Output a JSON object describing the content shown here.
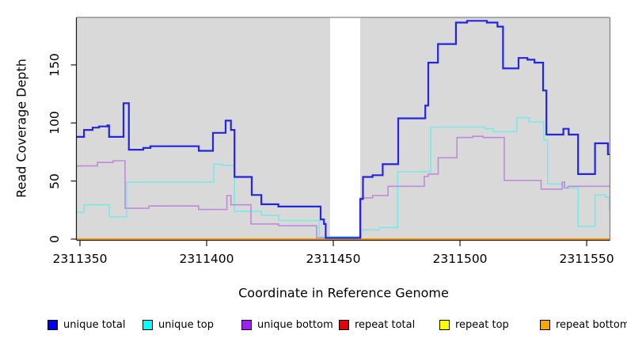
{
  "chart_data": {
    "type": "line",
    "step": true,
    "title": "",
    "xlabel": "Coordinate in Reference Genome",
    "ylabel": "Read Coverage Depth",
    "xlim": [
      2311348.75,
      2311559.2
    ],
    "ylim": [
      0,
      190.9
    ],
    "xticks": [
      2311350,
      2311400,
      2311450,
      2311500,
      2311550
    ],
    "yticks": [
      0,
      50,
      100,
      150
    ],
    "plot_bg": "#d9d9d9",
    "border_color": "#858585",
    "axis_color": "#1a1a1a",
    "gap_region": {
      "x1": 2311448.75,
      "x2": 2311460.6,
      "color": "#ffffff"
    },
    "series": [
      {
        "name": "repeat total",
        "line_color": "#e60000",
        "width": 1.5,
        "points": [
          [
            2311348.75,
            0
          ]
        ]
      },
      {
        "name": "repeat top",
        "line_color": "#ffff00",
        "width": 1.5,
        "points": [
          [
            2311348.75,
            0
          ]
        ]
      },
      {
        "name": "repeat bottom",
        "line_color": "#ff9d00",
        "width": 2,
        "points": [
          [
            2311348.75,
            0
          ]
        ]
      },
      {
        "name": "unique top",
        "line_color": "#7de8e6",
        "width": 1.6,
        "points": [
          [
            2311348.75,
            23
          ],
          [
            2311351.6,
            29.5
          ],
          [
            2311361.6,
            19
          ],
          [
            2311368.4,
            49
          ],
          [
            2311402.8,
            64.5
          ],
          [
            2311406.3,
            63.5
          ],
          [
            2311411,
            24
          ],
          [
            2311421.6,
            20.5
          ],
          [
            2311428.4,
            16
          ],
          [
            2311444.4,
            2
          ],
          [
            2311461,
            8
          ],
          [
            2311468.2,
            10
          ],
          [
            2311475.4,
            58
          ],
          [
            2311488.5,
            96.5
          ],
          [
            2311510,
            95
          ],
          [
            2311513.1,
            92.5
          ],
          [
            2311522.5,
            104.5
          ],
          [
            2311527.3,
            101
          ],
          [
            2311533.1,
            85
          ],
          [
            2311534.6,
            47.5
          ],
          [
            2311540.9,
            44
          ],
          [
            2311546.6,
            11
          ],
          [
            2311553.3,
            38
          ],
          [
            2311557.5,
            36
          ],
          [
            2311558.9,
            26
          ]
        ]
      },
      {
        "name": "unique bottom",
        "line_color": "#bf8bd9",
        "width": 1.6,
        "points": [
          [
            2311348.75,
            63
          ],
          [
            2311356.9,
            66
          ],
          [
            2311363.1,
            67.5
          ],
          [
            2311367.8,
            26.5
          ],
          [
            2311377.2,
            28.5
          ],
          [
            2311396.8,
            25.5
          ],
          [
            2311408,
            37.5
          ],
          [
            2311409.6,
            29.5
          ],
          [
            2311417.5,
            13
          ],
          [
            2311428.4,
            11.5
          ],
          [
            2311443.4,
            1
          ],
          [
            2311460.9,
            35.5
          ],
          [
            2311465.5,
            37.5
          ],
          [
            2311471.6,
            45.5
          ],
          [
            2311485.9,
            54
          ],
          [
            2311487.5,
            56
          ],
          [
            2311491.4,
            70
          ],
          [
            2311498.8,
            87.5
          ],
          [
            2311505,
            88.5
          ],
          [
            2311509.1,
            87.5
          ],
          [
            2311517.5,
            50.5
          ],
          [
            2311532,
            43
          ],
          [
            2311540.3,
            49
          ],
          [
            2311541.3,
            44
          ],
          [
            2311542.6,
            45.5
          ]
        ]
      },
      {
        "name": "unique total",
        "line_color": "#2525e0",
        "width": 2.2,
        "points": [
          [
            2311348.75,
            88
          ],
          [
            2311351.6,
            94
          ],
          [
            2311355,
            96
          ],
          [
            2311357.5,
            97
          ],
          [
            2311360.8,
            98
          ],
          [
            2311361.5,
            88
          ],
          [
            2311367.2,
            117
          ],
          [
            2311369.3,
            77
          ],
          [
            2311375,
            78.5
          ],
          [
            2311377.8,
            80
          ],
          [
            2311396.9,
            76
          ],
          [
            2311402.5,
            91.5
          ],
          [
            2311407.5,
            102
          ],
          [
            2311409.6,
            94
          ],
          [
            2311411,
            53.5
          ],
          [
            2311417.8,
            38
          ],
          [
            2311421.6,
            30
          ],
          [
            2311428.3,
            28
          ],
          [
            2311445,
            17
          ],
          [
            2311446.3,
            13
          ],
          [
            2311447,
            1
          ],
          [
            2311460.6,
            34.5
          ],
          [
            2311461.7,
            53.5
          ],
          [
            2311465.5,
            55
          ],
          [
            2311469.5,
            64.5
          ],
          [
            2311475.6,
            104
          ],
          [
            2311486.3,
            115
          ],
          [
            2311487.5,
            152
          ],
          [
            2311491.3,
            168
          ],
          [
            2311498.4,
            186.5
          ],
          [
            2311502.8,
            188
          ],
          [
            2311510.6,
            186.5
          ],
          [
            2311514.8,
            183
          ],
          [
            2311517,
            147
          ],
          [
            2311523.1,
            156
          ],
          [
            2311526.6,
            154.5
          ],
          [
            2311529.4,
            152
          ],
          [
            2311532.8,
            128
          ],
          [
            2311534.1,
            90
          ],
          [
            2311540.8,
            95
          ],
          [
            2311542.9,
            90
          ],
          [
            2311546.6,
            56
          ],
          [
            2311553.3,
            82.5
          ],
          [
            2311558.4,
            73
          ]
        ]
      }
    ],
    "legend": {
      "items": [
        {
          "label": "unique total",
          "color": "#0000ee"
        },
        {
          "label": "unique top",
          "color": "#00ffff"
        },
        {
          "label": "unique bottom",
          "color": "#a020f0"
        },
        {
          "label": "repeat total",
          "color": "#e60000"
        },
        {
          "label": "repeat top",
          "color": "#ffff00"
        },
        {
          "label": "repeat bottom",
          "color": "#ffa500"
        }
      ]
    }
  }
}
